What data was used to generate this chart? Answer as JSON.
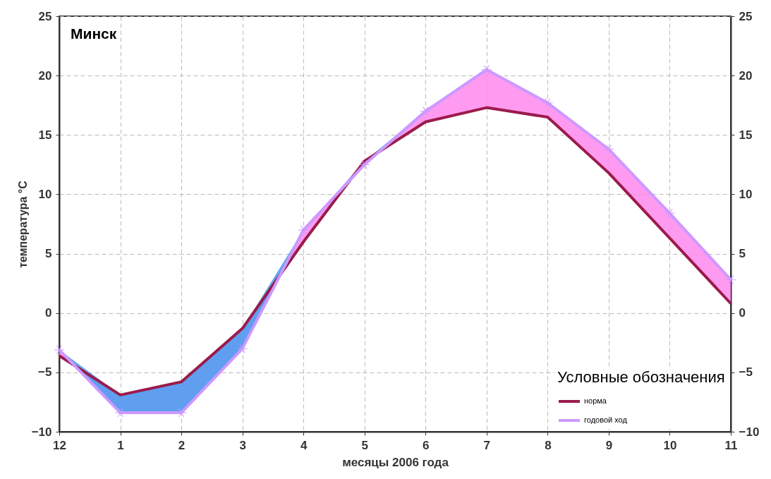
{
  "chart_data": {
    "type": "line",
    "title": "Минск",
    "xlabel": "месяцы 2006 года",
    "ylabel": "температура °C",
    "legend_title": "Условные обозначения",
    "categories": [
      "12",
      "1",
      "2",
      "3",
      "4",
      "5",
      "6",
      "7",
      "8",
      "9",
      "10",
      "11"
    ],
    "series": [
      {
        "name": "норма",
        "color": "#9b1b4b",
        "values": [
          -3.6,
          -6.9,
          -5.8,
          -1.3,
          6.0,
          12.8,
          16.1,
          17.3,
          16.5,
          11.8,
          6.3,
          0.8
        ]
      },
      {
        "name": "годовой ход",
        "color": "#cc99ff",
        "marker": "cross",
        "axis": "y2",
        "values": [
          -3.1,
          -8.4,
          -8.4,
          -3.0,
          7.0,
          12.5,
          17.0,
          20.5,
          17.7,
          13.8,
          8.4,
          2.8
        ],
        "lower": [
          -3.6,
          -6.9,
          -5.8,
          -1.3,
          6.0,
          12.8,
          16.1,
          17.3,
          16.5,
          11.8,
          6.3,
          0.8
        ],
        "upper": [
          -3.1,
          -8.4,
          -8.4,
          -3.0,
          7.0,
          12.5,
          17.0,
          20.5,
          17.7,
          13.8,
          8.4,
          2.8
        ]
      }
    ],
    "ylim": [
      -10,
      25
    ],
    "yticks": [
      -10,
      -5,
      0,
      5,
      10,
      15,
      20,
      25
    ],
    "y2lim": [
      -10,
      25
    ],
    "y2ticks": [
      -10,
      -5,
      0,
      5,
      10,
      15,
      20,
      25
    ],
    "grid": true,
    "legend": "bottom right"
  }
}
